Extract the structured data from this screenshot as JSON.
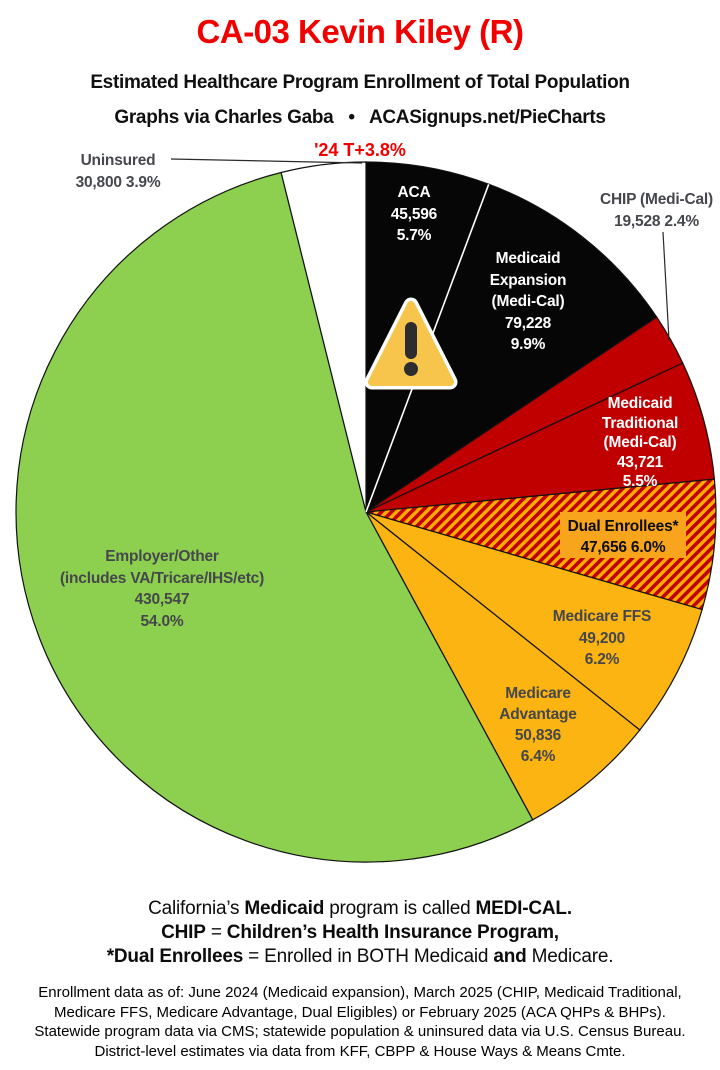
{
  "header": {
    "title": "CA-03 Kevin Kiley (R)",
    "subtitle": "Estimated Healthcare Program Enrollment of Total Population",
    "byline": "Graphs via Charles Gaba   •   ACASignups.net/PieCharts",
    "trend": "'24 T+3.8%"
  },
  "chart_data": {
    "type": "pie",
    "title": "Estimated Healthcare Program Enrollment of Total Population",
    "start_angle_deg": 0,
    "direction": "clockwise",
    "legend_position": "labels-on-and-around-pie",
    "slices": [
      {
        "name": "ACA",
        "value": 45596,
        "pct": 5.7,
        "color": "#060606",
        "text_color": "#ffffff",
        "lines": [
          "ACA",
          "45,596",
          "5.7%"
        ]
      },
      {
        "name": "Medicaid Expansion (Medi-Cal)",
        "value": 79228,
        "pct": 9.9,
        "color": "#060606",
        "text_color": "#ffffff",
        "lines": [
          "Medicaid",
          "Expansion",
          "(Medi-Cal)",
          "79,228",
          "9.9%"
        ]
      },
      {
        "name": "CHIP (Medi-Cal)",
        "value": 19528,
        "pct": 2.4,
        "color": "#C00000",
        "text_color": "#45474C",
        "lines": [
          "CHIP (Medi-Cal)",
          "19,528 2.4%"
        ]
      },
      {
        "name": "Medicaid Traditional (Medi-Cal)",
        "value": 43721,
        "pct": 5.5,
        "color": "#C00000",
        "text_color": "#ffffff",
        "lines": [
          "Medicaid",
          "Traditional",
          "(Medi-Cal)",
          "43,721",
          "5.5%"
        ]
      },
      {
        "name": "Dual Enrollees*",
        "value": 47656,
        "pct": 6.0,
        "hatch": true,
        "color": "#C00000",
        "hatch_color": "#FFAE00",
        "label_box_color": "#F8A51D",
        "text_color": "#0d0d0d",
        "lines": [
          "Dual Enrollees*",
          "47,656 6.0%"
        ]
      },
      {
        "name": "Medicare FFS",
        "value": 49200,
        "pct": 6.2,
        "color": "#FBB411",
        "text_color": "#45474C",
        "lines": [
          "Medicare FFS",
          "49,200",
          "6.2%"
        ]
      },
      {
        "name": "Medicare Advantage",
        "value": 50836,
        "pct": 6.4,
        "color": "#FBB411",
        "text_color": "#45474C",
        "lines": [
          "Medicare",
          "Advantage",
          "50,836",
          "6.4%"
        ]
      },
      {
        "name": "Employer/Other (includes VA/Tricare/IHS/etc)",
        "value": 430547,
        "pct": 54.0,
        "color": "#8DD04F",
        "text_color": "#45474C",
        "lines": [
          "Employer/Other",
          "(includes VA/Tricare/IHS/etc)",
          "430,547",
          "54.0%"
        ]
      },
      {
        "name": "Uninsured",
        "value": 30800,
        "pct": 3.9,
        "color": "#FFFFFF",
        "text_color": "#45474C",
        "lines": [
          "Uninsured",
          "30,800 3.9%"
        ]
      }
    ]
  },
  "footnotes": {
    "medicaid": [
      "California’s ",
      "Medicaid",
      " program is called ",
      "MEDI-CAL."
    ],
    "chip": [
      "CHIP",
      " = ",
      "Children’s Health Insurance Program,"
    ],
    "dual": [
      "*Dual Enrollees",
      " = Enrolled in BOTH Medicaid ",
      "and",
      " Medicare."
    ]
  },
  "fine_print": [
    "Enrollment data as of: June 2024 (Medicaid expansion), March 2025 (CHIP, Medicaid Traditional,",
    "Medicare FFS, Medicare Advantage, Dual Eligibles) or February 2025 (ACA QHPs & BHPs).",
    "Statewide program data via CMS; statewide population & uninsured data via U.S. Census Bureau.",
    "District-level estimates via data from KFF, CBPP & House Ways & Means Cmte."
  ],
  "colors": {
    "accent_red": "#F20000",
    "label_gray": "#45474C",
    "pie_black": "#060606",
    "pie_red": "#C00000",
    "pie_gold": "#FBB411",
    "pie_green": "#8DD04F",
    "hatch_orange": "#FFAE00",
    "dual_label_box": "#F8A51D",
    "warning_fill": "#F7C44C"
  }
}
